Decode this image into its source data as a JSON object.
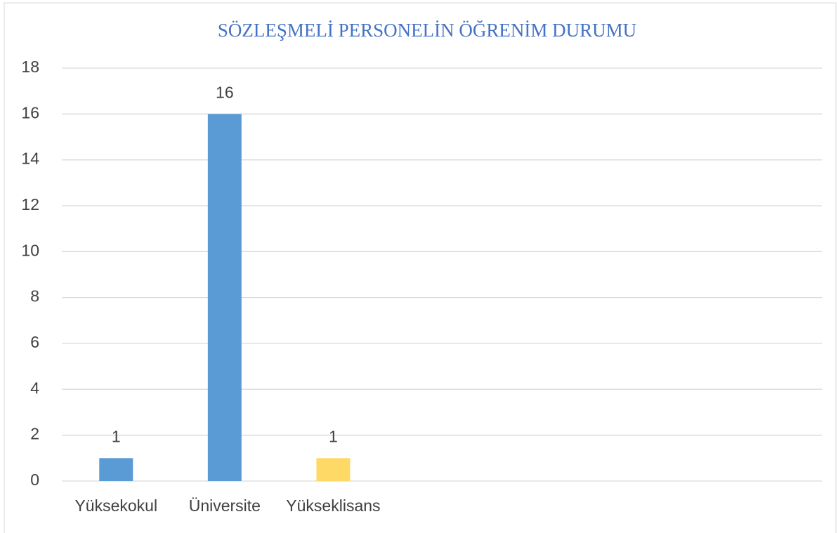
{
  "chart_data": {
    "type": "bar",
    "title": "SÖZLEŞMELİ  PERSONELİN ÖĞRENİM DURUMU",
    "categories": [
      "Yüksekokul",
      "Üniversite",
      "Yükseklisans",
      null,
      null,
      null,
      null
    ],
    "values": [
      1,
      16,
      1,
      null,
      null,
      null,
      null
    ],
    "colors": [
      "#5b9bd5",
      "#5b9bd5",
      "#ffd966"
    ],
    "ylim": [
      0,
      18
    ],
    "yticks": [
      0,
      2,
      4,
      6,
      8,
      10,
      12,
      14,
      16,
      18
    ],
    "grid": true
  }
}
